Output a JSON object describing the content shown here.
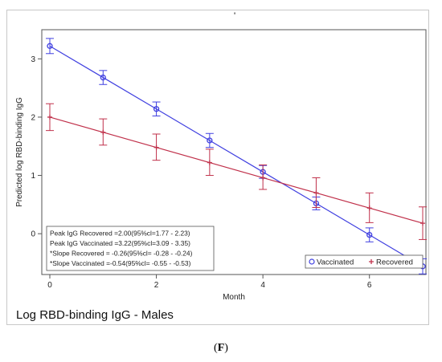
{
  "figure": {
    "stray_mark": "'",
    "panel_title": "Log RBD-binding IgG - Males",
    "panel_label_open": "(",
    "panel_label_letter": "F",
    "panel_label_close": ")"
  },
  "chart_data": {
    "type": "line",
    "title": "",
    "xlabel": "Month",
    "ylabel": "Predicted log RBD-binding IgG",
    "xlim": [
      0,
      7
    ],
    "ylim": [
      -0.7,
      3.5
    ],
    "xticks": [
      0,
      2,
      4,
      6
    ],
    "yticks": [
      0,
      1,
      2,
      3
    ],
    "grid": false,
    "legend_position": "bottom-right",
    "series": [
      {
        "name": "Vaccinated",
        "color": "#4040e0",
        "marker": "circle",
        "x": [
          0,
          1,
          2,
          3,
          4,
          5,
          6,
          7
        ],
        "y": [
          3.22,
          2.68,
          2.14,
          1.6,
          1.06,
          0.52,
          -0.02,
          -0.56
        ],
        "lower": [
          3.09,
          2.56,
          2.02,
          1.48,
          0.95,
          0.41,
          -0.14,
          -0.69
        ],
        "upper": [
          3.35,
          2.8,
          2.26,
          1.72,
          1.17,
          0.63,
          0.1,
          -0.43
        ]
      },
      {
        "name": "Recovered",
        "color": "#c0304a",
        "marker": "plus",
        "x": [
          0,
          1,
          2,
          3,
          4,
          5,
          6,
          7
        ],
        "y": [
          2.0,
          1.74,
          1.48,
          1.22,
          0.96,
          0.7,
          0.44,
          0.18
        ],
        "lower": [
          1.77,
          1.52,
          1.26,
          1.0,
          0.76,
          0.45,
          0.19,
          -0.1
        ],
        "upper": [
          2.23,
          1.97,
          1.71,
          1.45,
          1.18,
          0.96,
          0.7,
          0.46
        ]
      }
    ],
    "annotations": [
      "Peak IgG Recovered =2.00(95%cl=1.77 - 2.23)",
      "Peak IgG Vaccinated =3.22(95%cl=3.09 - 3.35)",
      "*Slope Recovered = -0.26(95%cl= -0.28 - -0.24)",
      "*Slope Vaccinated =-0.54(95%cl= -0.55 - -0.53)"
    ]
  }
}
